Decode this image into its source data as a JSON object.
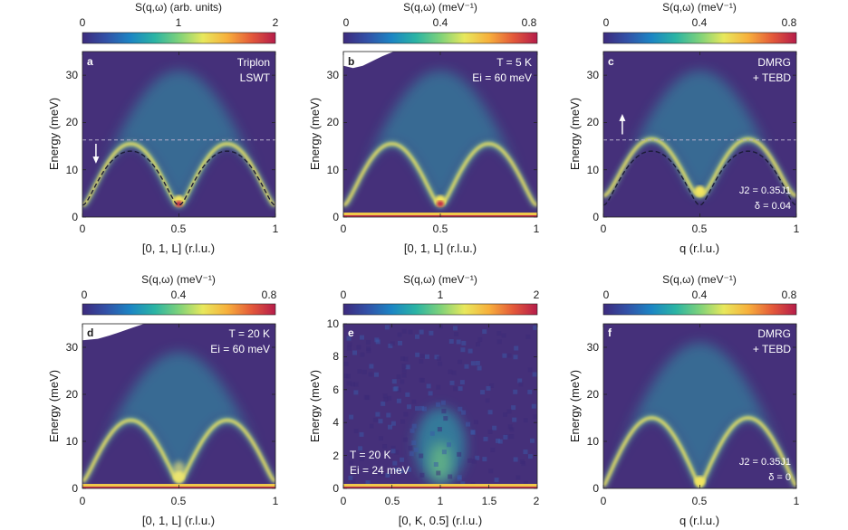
{
  "colors": {
    "bg": "#45307a",
    "band": "#f2e55e",
    "hot": "#c02848",
    "mid": "#2e9aa8",
    "dashed_line": "#b8b0cc",
    "dispersion_line": "#1c1c38",
    "colormap": [
      "#3d2a7d",
      "#3252a8",
      "#1c86c4",
      "#2bb4a4",
      "#7ed27a",
      "#e8e85c",
      "#f7b03c",
      "#e45a3a",
      "#b51c4a"
    ]
  },
  "chart_data": [
    {
      "id": "a",
      "type": "heatmap",
      "panel_label": "a",
      "colorbar": {
        "label": "S(q,ω) (arb. units)",
        "ticks": [
          "0",
          "1",
          "2"
        ]
      },
      "xlabel": "[0, 1, L] (r.l.u.)",
      "ylabel": "Energy (meV)",
      "xticks": [
        "0",
        "0.5",
        "1"
      ],
      "yticks": [
        "0",
        "10",
        "20",
        "30"
      ],
      "xlim": [
        0,
        1
      ],
      "ylim": [
        0,
        35
      ],
      "annotations": [
        "Triplon",
        "LSWT"
      ],
      "dispersion": {
        "gap_meV": 2.5,
        "max_meV": 15.5,
        "continuum_top_meV": 31
      },
      "dashed_line_meV": 16.3,
      "arrow": "down",
      "lswt_curve": true
    },
    {
      "id": "b",
      "type": "heatmap",
      "panel_label": "b",
      "colorbar": {
        "label": "S(q,ω) (meV⁻¹)",
        "ticks": [
          "0",
          "0.4",
          "0.8"
        ]
      },
      "xlabel": "[0, 1, L] (r.l.u.)",
      "ylabel": "Energy (meV)",
      "xticks": [
        "0",
        "0.5",
        "1"
      ],
      "yticks": [
        "0",
        "10",
        "20",
        "30"
      ],
      "xlim": [
        0,
        1
      ],
      "ylim": [
        0,
        35
      ],
      "annotations": [
        "T = 5 K",
        "Ei = 60 meV"
      ],
      "dispersion": {
        "gap_meV": 2.5,
        "max_meV": 15.5,
        "continuum_top_meV": 31
      },
      "elastic_line": true
    },
    {
      "id": "c",
      "type": "heatmap",
      "panel_label": "c",
      "colorbar": {
        "label": "S(q,ω) (meV⁻¹)",
        "ticks": [
          "0",
          "0.4",
          "0.8"
        ]
      },
      "xlabel": "q (r.l.u.)",
      "ylabel": "Energy (meV)",
      "xticks": [
        "0",
        "0.5",
        "1"
      ],
      "yticks": [
        "0",
        "10",
        "20",
        "30"
      ],
      "xlim": [
        0,
        1
      ],
      "ylim": [
        0,
        35
      ],
      "annotations": [
        "DMRG",
        "+ TEBD",
        "J2 = 0.35J1",
        "δ = 0.04"
      ],
      "dispersion": {
        "gap_meV": 4.5,
        "max_meV": 16.5,
        "continuum_top_meV": 31
      },
      "dashed_line_meV": 16.3,
      "arrow": "up",
      "lswt_curve": true
    },
    {
      "id": "d",
      "type": "heatmap",
      "panel_label": "d",
      "colorbar": {
        "label": "S(q,ω) (meV⁻¹)",
        "ticks": [
          "0",
          "0.4",
          "0.8"
        ]
      },
      "xlabel": "[0, 1, L] (r.l.u.)",
      "ylabel": "Energy (meV)",
      "xticks": [
        "0",
        "0.5",
        "1"
      ],
      "yticks": [
        "0",
        "10",
        "20",
        "30"
      ],
      "xlim": [
        0,
        1
      ],
      "ylim": [
        0,
        35
      ],
      "annotations": [
        "T = 20 K",
        "Ei = 60 meV"
      ],
      "dispersion": {
        "gap_meV": 1.5,
        "max_meV": 14.5,
        "continuum_top_meV": 29
      },
      "elastic_line": true
    },
    {
      "id": "e",
      "type": "heatmap",
      "panel_label": "e",
      "colorbar": {
        "label": "S(q,ω) (meV⁻¹)",
        "ticks": [
          "0",
          "1",
          "2"
        ]
      },
      "xlabel": "[0, K, 0.5] (r.l.u.)",
      "ylabel": "Energy (meV)",
      "xticks": [
        "0",
        "0.5",
        "1",
        "1.5",
        "2"
      ],
      "yticks": [
        "0",
        "2",
        "4",
        "6",
        "8",
        "10"
      ],
      "xlim": [
        0,
        2
      ],
      "ylim": [
        0,
        10
      ],
      "annotations": [
        "T = 20 K",
        "Ei = 24 meV"
      ],
      "elastic_line": true
    },
    {
      "id": "f",
      "type": "heatmap",
      "panel_label": "f",
      "colorbar": {
        "label": "S(q,ω) (meV⁻¹)",
        "ticks": [
          "0",
          "0.4",
          "0.8"
        ]
      },
      "xlabel": "q (r.l.u.)",
      "ylabel": "Energy (meV)",
      "xticks": [
        "0",
        "0.5",
        "1"
      ],
      "yticks": [
        "0",
        "10",
        "20",
        "30"
      ],
      "xlim": [
        0,
        1
      ],
      "ylim": [
        0,
        35
      ],
      "annotations": [
        "DMRG",
        "+ TEBD",
        "J2 = 0.35J1",
        "δ = 0"
      ],
      "dispersion": {
        "gap_meV": 0.5,
        "max_meV": 15,
        "continuum_top_meV": 31
      }
    }
  ]
}
